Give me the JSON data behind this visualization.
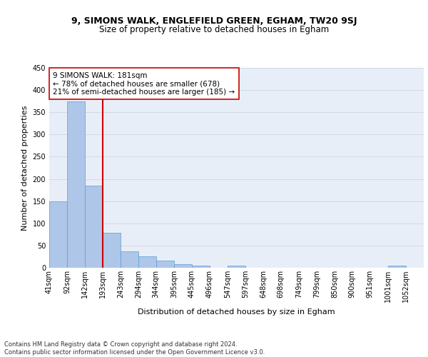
{
  "title1": "9, SIMONS WALK, ENGLEFIELD GREEN, EGHAM, TW20 9SJ",
  "title2": "Size of property relative to detached houses in Egham",
  "xlabel": "Distribution of detached houses by size in Egham",
  "ylabel": "Number of detached properties",
  "bin_labels": [
    "41sqm",
    "92sqm",
    "142sqm",
    "193sqm",
    "243sqm",
    "294sqm",
    "344sqm",
    "395sqm",
    "445sqm",
    "496sqm",
    "547sqm",
    "597sqm",
    "648sqm",
    "698sqm",
    "749sqm",
    "799sqm",
    "850sqm",
    "900sqm",
    "951sqm",
    "1001sqm",
    "1052sqm"
  ],
  "bin_edges": [
    41,
    92,
    142,
    193,
    243,
    294,
    344,
    395,
    445,
    496,
    547,
    597,
    648,
    698,
    749,
    799,
    850,
    900,
    951,
    1001,
    1052
  ],
  "bar_heights": [
    150,
    375,
    185,
    78,
    37,
    25,
    16,
    8,
    5,
    0,
    5,
    0,
    0,
    0,
    0,
    0,
    0,
    0,
    0,
    5,
    0
  ],
  "bar_color": "#aec6e8",
  "bar_edge_color": "#5a9fd4",
  "vline_color": "#cc0000",
  "annotation_text": "9 SIMONS WALK: 181sqm\n← 78% of detached houses are smaller (678)\n21% of semi-detached houses are larger (185) →",
  "annotation_box_color": "white",
  "annotation_box_edge": "#cc0000",
  "ylim": [
    0,
    450
  ],
  "yticks": [
    0,
    50,
    100,
    150,
    200,
    250,
    300,
    350,
    400,
    450
  ],
  "grid_color": "#d0d8e8",
  "bg_color": "#e8eef8",
  "footnote": "Contains HM Land Registry data © Crown copyright and database right 2024.\nContains public sector information licensed under the Open Government Licence v3.0.",
  "title1_fontsize": 9,
  "title2_fontsize": 8.5,
  "xlabel_fontsize": 8,
  "ylabel_fontsize": 8,
  "tick_fontsize": 7,
  "annotation_fontsize": 7.5,
  "footnote_fontsize": 6
}
